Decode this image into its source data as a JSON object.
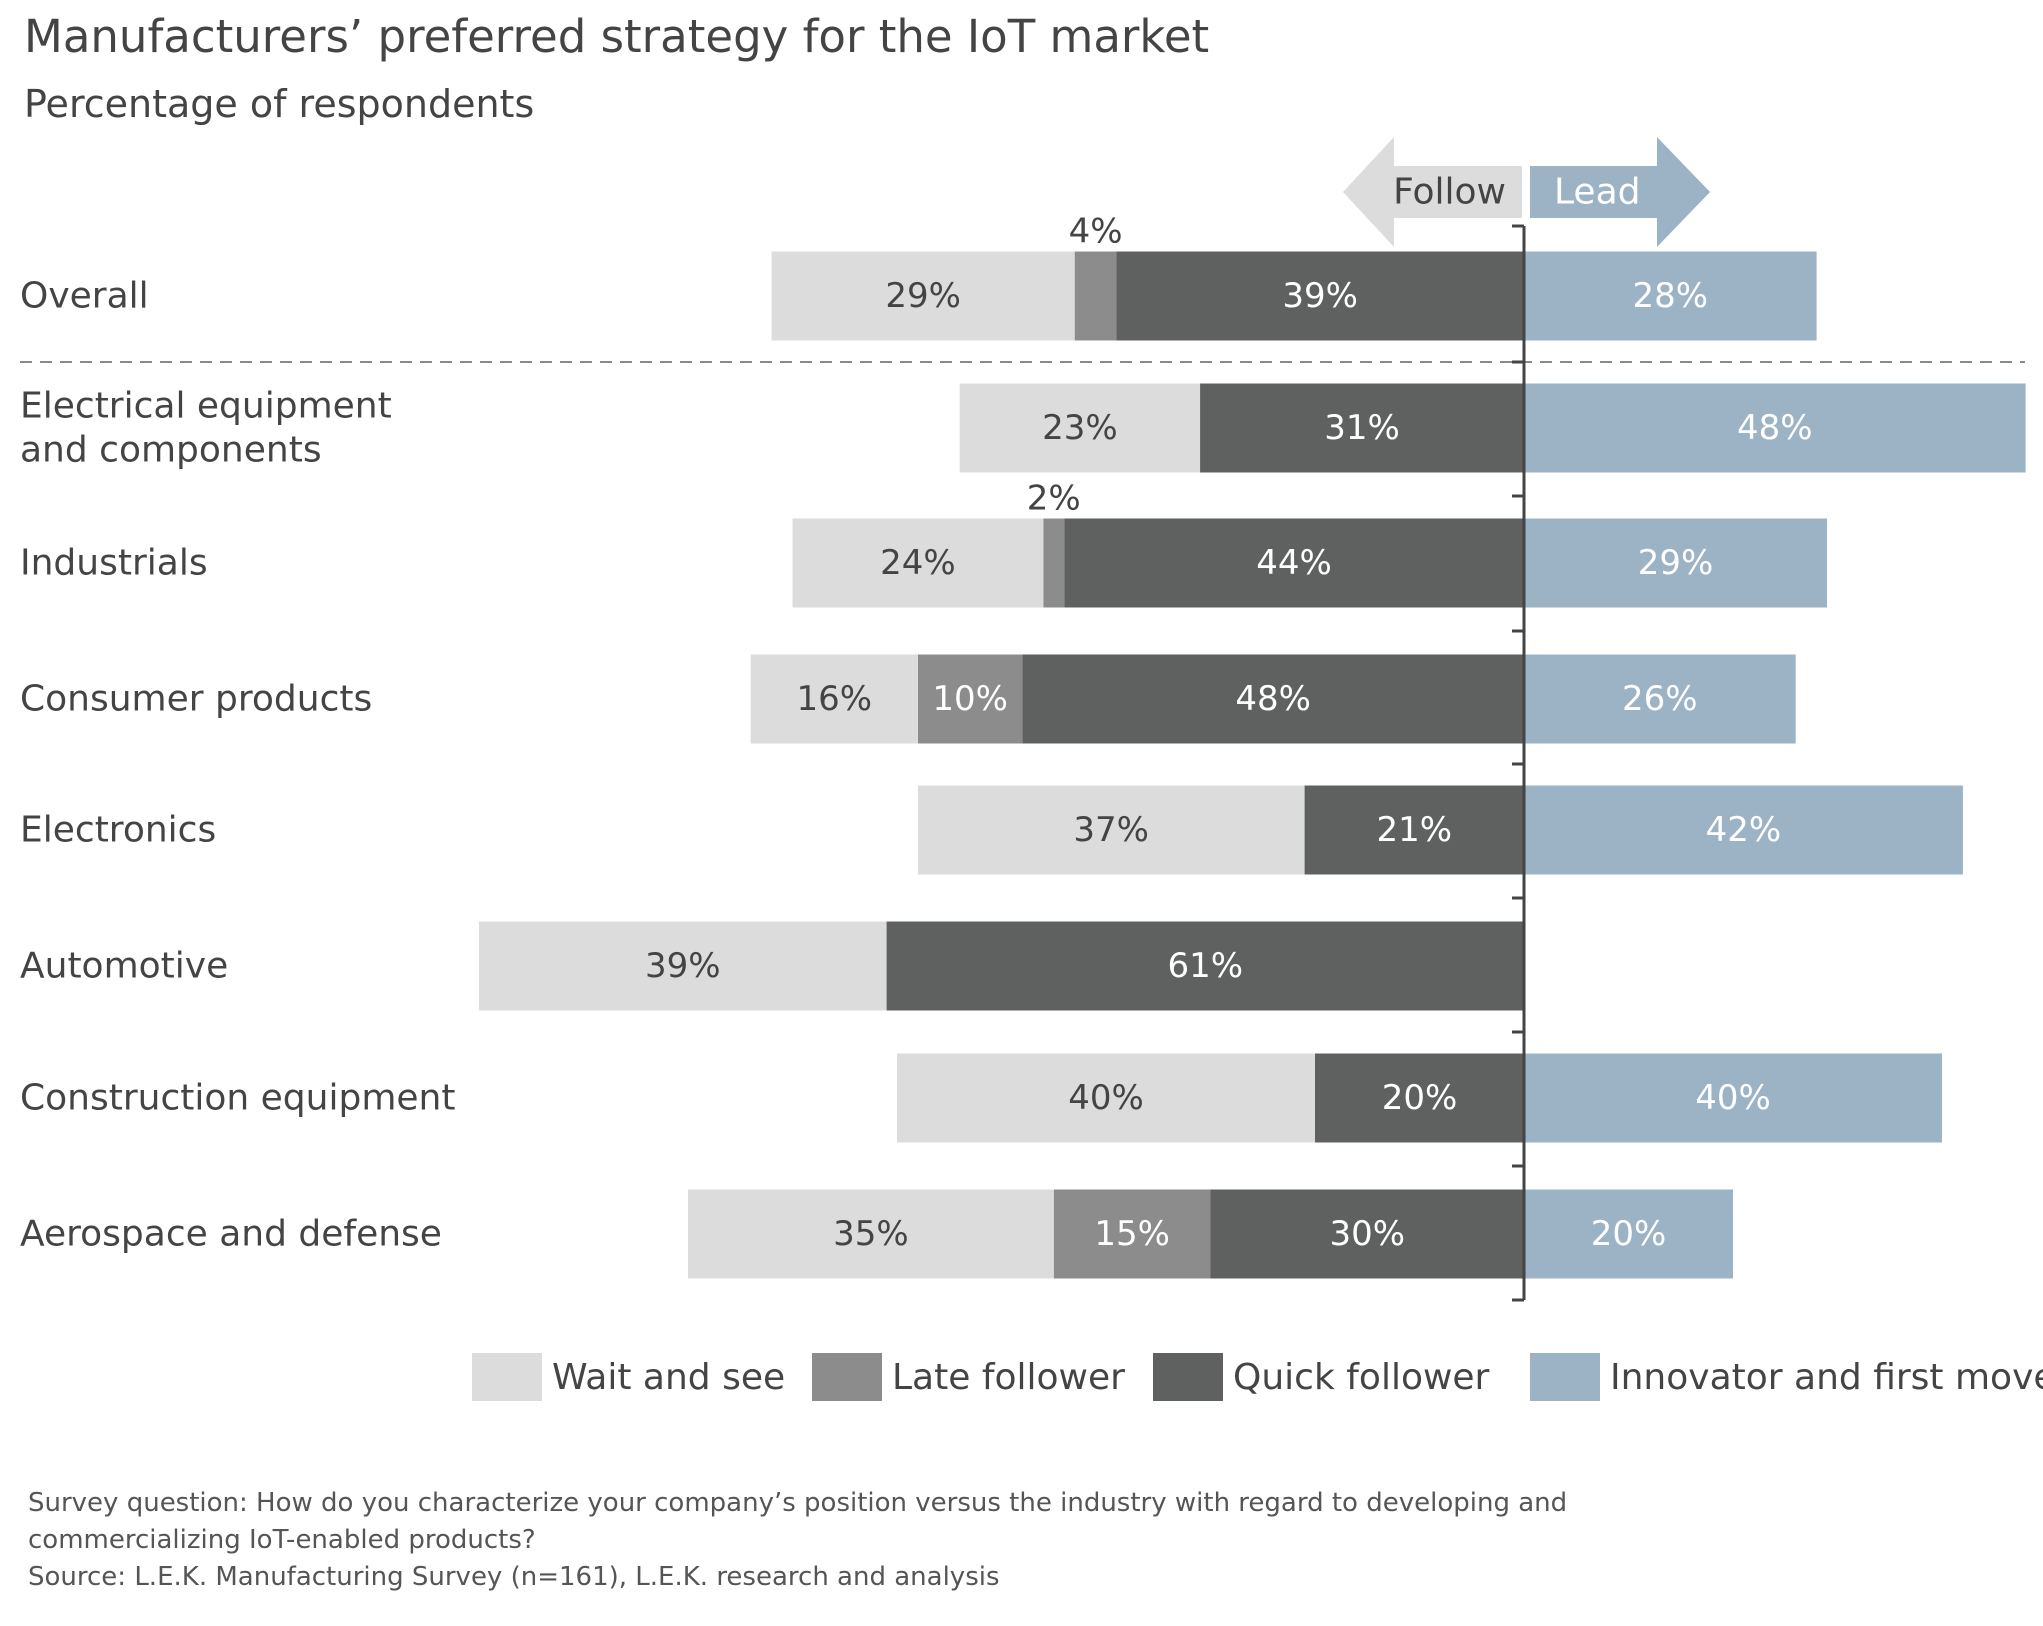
{
  "header": {
    "title": "Manufacturers’ preferred strategy for the IoT market",
    "subtitle": "Percentage of respondents"
  },
  "direction": {
    "follow": "Follow",
    "lead": "Lead"
  },
  "footnotes": {
    "question_line1": "Survey question: How do you characterize your company’s position versus the industry with regard to developing and",
    "question_line2": "commercializing IoT-enabled products?",
    "source": "Source: L.E.K. Manufacturing Survey (n=161), L.E.K. research and analysis"
  },
  "colors": {
    "wait_and_see": "#dcdcdc",
    "late_follower": "#8c8c8c",
    "quick_follower": "#5f6060",
    "innovator": "#9bb3c4",
    "arrow_follow": "#dcdcdc",
    "arrow_lead": "#9bb3c4"
  },
  "chart_data": {
    "type": "bar",
    "orientation": "horizontal",
    "stacked": "diverging",
    "categories": [
      "Overall",
      "Electrical equipment\nand components",
      "Industrials",
      "Consumer products",
      "Electronics",
      "Automotive",
      "Construction equipment",
      "Aerospace and defense"
    ],
    "series": [
      {
        "name": "Wait and see",
        "side": "follow",
        "values": [
          29,
          23,
          24,
          16,
          37,
          39,
          40,
          35
        ]
      },
      {
        "name": "Late follower",
        "side": "follow",
        "values": [
          4,
          0,
          2,
          10,
          0,
          0,
          0,
          15
        ]
      },
      {
        "name": "Quick follower",
        "side": "follow",
        "values": [
          39,
          31,
          44,
          48,
          21,
          61,
          20,
          30
        ]
      },
      {
        "name": "Innovator and first mover",
        "side": "lead",
        "values": [
          28,
          48,
          29,
          26,
          42,
          0,
          40,
          20
        ]
      }
    ],
    "labels": [
      [
        "29%",
        "4%",
        "39%",
        "28%"
      ],
      [
        "23%",
        "",
        "31%",
        "48%"
      ],
      [
        "24%",
        "2%",
        "44%",
        "29%"
      ],
      [
        "16%",
        "10%",
        "48%",
        "26%"
      ],
      [
        "37%",
        "",
        "21%",
        "42%"
      ],
      [
        "39%",
        "",
        "61%",
        ""
      ],
      [
        "40%",
        "",
        "20%",
        "40%"
      ],
      [
        "35%",
        "15%",
        "30%",
        "20%"
      ]
    ],
    "legend_position": "bottom",
    "divider_after": "Overall",
    "grid": false
  }
}
